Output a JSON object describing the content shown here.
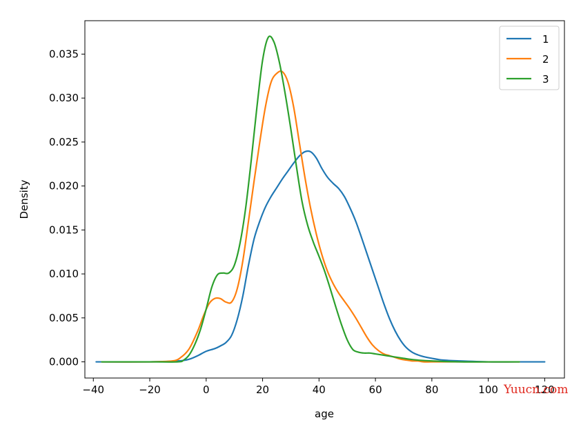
{
  "chart_data": {
    "type": "line",
    "xlabel": "age",
    "ylabel": "Density",
    "xlim": [
      -43,
      127
    ],
    "ylim": [
      -0.00184,
      0.0388
    ],
    "xticks": [
      -40,
      -20,
      0,
      20,
      40,
      60,
      80,
      100,
      120
    ],
    "xtick_labels": [
      "−40",
      "−20",
      "0",
      "20",
      "40",
      "60",
      "80",
      "100",
      "120"
    ],
    "yticks": [
      0.0,
      0.005,
      0.01,
      0.015,
      0.02,
      0.025,
      0.03,
      0.035
    ],
    "ytick_labels": [
      "0.000",
      "0.005",
      "0.010",
      "0.015",
      "0.020",
      "0.025",
      "0.030",
      "0.035"
    ],
    "grid": false,
    "legend_position": "top-right",
    "series": [
      {
        "name": "1",
        "color": "#1f77b4",
        "x": [
          -39,
          -20,
          -10,
          -6,
          -3,
          0,
          3,
          5,
          7,
          9,
          11,
          13,
          15,
          17,
          19,
          21,
          23,
          25,
          27,
          29,
          31,
          33,
          35,
          37,
          39,
          41,
          43,
          45,
          47,
          49,
          51,
          53,
          55,
          57,
          59,
          61,
          63,
          65,
          67,
          69,
          71,
          73,
          75,
          77,
          80,
          84,
          90,
          100,
          110,
          120
        ],
        "y": [
          0.0,
          0.0,
          0.0001,
          0.0003,
          0.0007,
          0.0012,
          0.0015,
          0.0018,
          0.0022,
          0.003,
          0.0048,
          0.0075,
          0.011,
          0.014,
          0.016,
          0.0176,
          0.0188,
          0.0198,
          0.0208,
          0.0217,
          0.0226,
          0.0234,
          0.0239,
          0.0239,
          0.0232,
          0.022,
          0.021,
          0.0203,
          0.0197,
          0.0188,
          0.0175,
          0.016,
          0.0142,
          0.0123,
          0.0104,
          0.0085,
          0.0066,
          0.0049,
          0.0035,
          0.0024,
          0.0016,
          0.0011,
          0.0008,
          0.0006,
          0.0004,
          0.0002,
          0.0001,
          0.0,
          0.0,
          0.0
        ]
      },
      {
        "name": "2",
        "color": "#ff7f0e",
        "x": [
          -37,
          -20,
          -12,
          -9,
          -6,
          -3,
          -1,
          1,
          3,
          5,
          7,
          9,
          11,
          13,
          15,
          17,
          19,
          21,
          23,
          25,
          27,
          29,
          31,
          33,
          35,
          37,
          39,
          41,
          43,
          45,
          47,
          49,
          51,
          53,
          55,
          57,
          59,
          61,
          63,
          65,
          67,
          69,
          71,
          73,
          75,
          77,
          80,
          85,
          90,
          100,
          111
        ],
        "y": [
          0.0,
          0.0,
          0.0001,
          0.0005,
          0.0015,
          0.0035,
          0.0052,
          0.0066,
          0.0072,
          0.0072,
          0.0068,
          0.0068,
          0.0083,
          0.0115,
          0.016,
          0.0206,
          0.025,
          0.029,
          0.0318,
          0.0328,
          0.033,
          0.0318,
          0.029,
          0.025,
          0.021,
          0.0175,
          0.0146,
          0.0122,
          0.0103,
          0.0089,
          0.0078,
          0.0069,
          0.006,
          0.005,
          0.0039,
          0.0028,
          0.0019,
          0.0013,
          0.0009,
          0.0007,
          0.0005,
          0.0003,
          0.0002,
          0.0001,
          0.0001,
          0.0,
          0.0,
          0.0,
          0.0,
          0.0,
          0.0
        ]
      },
      {
        "name": "3",
        "color": "#2ca02c",
        "x": [
          -37,
          -20,
          -10,
          -8,
          -6,
          -4,
          -2,
          0,
          2,
          4,
          6,
          8,
          10,
          12,
          14,
          16,
          18,
          20,
          22,
          24,
          26,
          28,
          30,
          32,
          34,
          36,
          38,
          40,
          42,
          44,
          46,
          48,
          50,
          52,
          54,
          56,
          58,
          60,
          62,
          64,
          66,
          68,
          70,
          72,
          75,
          80,
          90,
          100,
          111
        ],
        "y": [
          0.0,
          0.0,
          0.0,
          0.0002,
          0.0008,
          0.002,
          0.0037,
          0.006,
          0.0085,
          0.0099,
          0.0101,
          0.0101,
          0.011,
          0.0135,
          0.0175,
          0.023,
          0.029,
          0.0343,
          0.0369,
          0.0364,
          0.034,
          0.0305,
          0.0265,
          0.0222,
          0.0182,
          0.0155,
          0.0136,
          0.012,
          0.0103,
          0.0083,
          0.0062,
          0.0042,
          0.0025,
          0.0014,
          0.0011,
          0.001,
          0.001,
          0.0009,
          0.0008,
          0.0007,
          0.0006,
          0.0005,
          0.0004,
          0.0003,
          0.0002,
          0.0001,
          0.0,
          0.0,
          0.0
        ]
      }
    ]
  },
  "watermark": "Yuucn.com"
}
